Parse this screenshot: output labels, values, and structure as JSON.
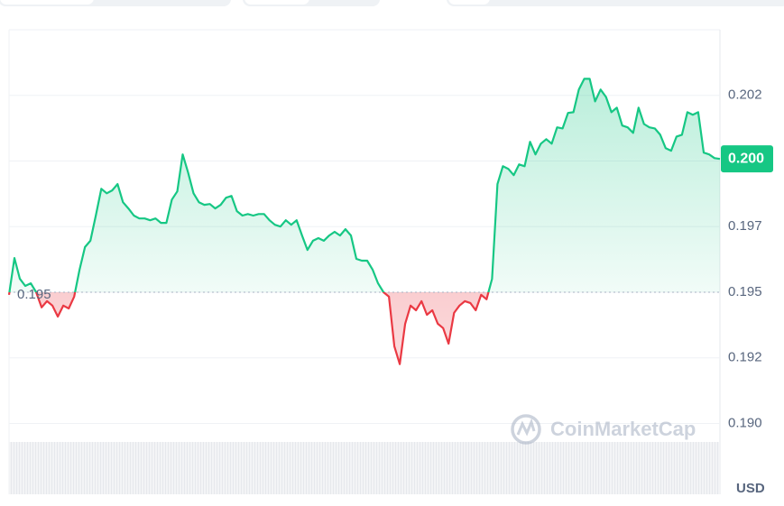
{
  "chart_data": {
    "type": "line",
    "color": "#16c784",
    "negative_color": "#ea3943",
    "baseline": 0.195,
    "last_value_label": "0.200",
    "currency": "USD",
    "watermark": "CoinMarketCap",
    "grid": true,
    "ylim": [
      0.1873,
      0.205
    ],
    "yticks": [
      {
        "value": 0.19,
        "label": "0.190"
      },
      {
        "value": 0.1925,
        "label": "0.192"
      },
      0.195,
      {
        "value": 0.1975,
        "label": "0.197"
      },
      {
        "value": 0.2,
        "label": "0.200"
      },
      {
        "value": 0.2025,
        "label": "0.202"
      }
    ],
    "values": [
      0.1949,
      0.1963,
      0.19551,
      0.19524,
      0.19534,
      0.195,
      0.19442,
      0.19466,
      0.19449,
      0.19407,
      0.19449,
      0.19438,
      0.19483,
      0.19586,
      0.19672,
      0.19696,
      0.19792,
      0.19894,
      0.19877,
      0.19888,
      0.19912,
      0.19843,
      0.19819,
      0.19792,
      0.19781,
      0.19781,
      0.19774,
      0.19781,
      0.19764,
      0.19764,
      0.19853,
      0.19884,
      0.20025,
      0.19956,
      0.19877,
      0.19843,
      0.19833,
      0.19836,
      0.19819,
      0.19833,
      0.1986,
      0.19867,
      0.19809,
      0.19792,
      0.19798,
      0.19792,
      0.19798,
      0.19798,
      0.19774,
      0.19757,
      0.1975,
      0.19774,
      0.19757,
      0.19774,
      0.19716,
      0.19661,
      0.19696,
      0.19706,
      0.19696,
      0.19716,
      0.1973,
      0.19716,
      0.1974,
      0.19716,
      0.19627,
      0.1962,
      0.1962,
      0.19586,
      0.19534,
      0.195,
      0.19483,
      0.19294,
      0.19226,
      0.1938,
      0.19449,
      0.19431,
      0.19466,
      0.19414,
      0.19431,
      0.1938,
      0.19363,
      0.19304,
      0.19421,
      0.19449,
      0.19466,
      0.19459,
      0.19431,
      0.1949,
      0.19473,
      0.19551,
      0.19912,
      0.1998,
      0.1997,
      0.19946,
      0.19987,
      0.1998,
      0.20073,
      0.20025,
      0.20066,
      0.20083,
      0.20066,
      0.20128,
      0.20124,
      0.20183,
      0.20186,
      0.20272,
      0.20313,
      0.20313,
      0.20227,
      0.20272,
      0.20244,
      0.20186,
      0.20203,
      0.20135,
      0.20128,
      0.20107,
      0.20203,
      0.20141,
      0.20128,
      0.20124,
      0.201,
      0.20049,
      0.20039,
      0.20093,
      0.201,
      0.20186,
      0.20176,
      0.20186,
      0.20032,
      0.20025,
      0.20011,
      0.20008
    ]
  }
}
